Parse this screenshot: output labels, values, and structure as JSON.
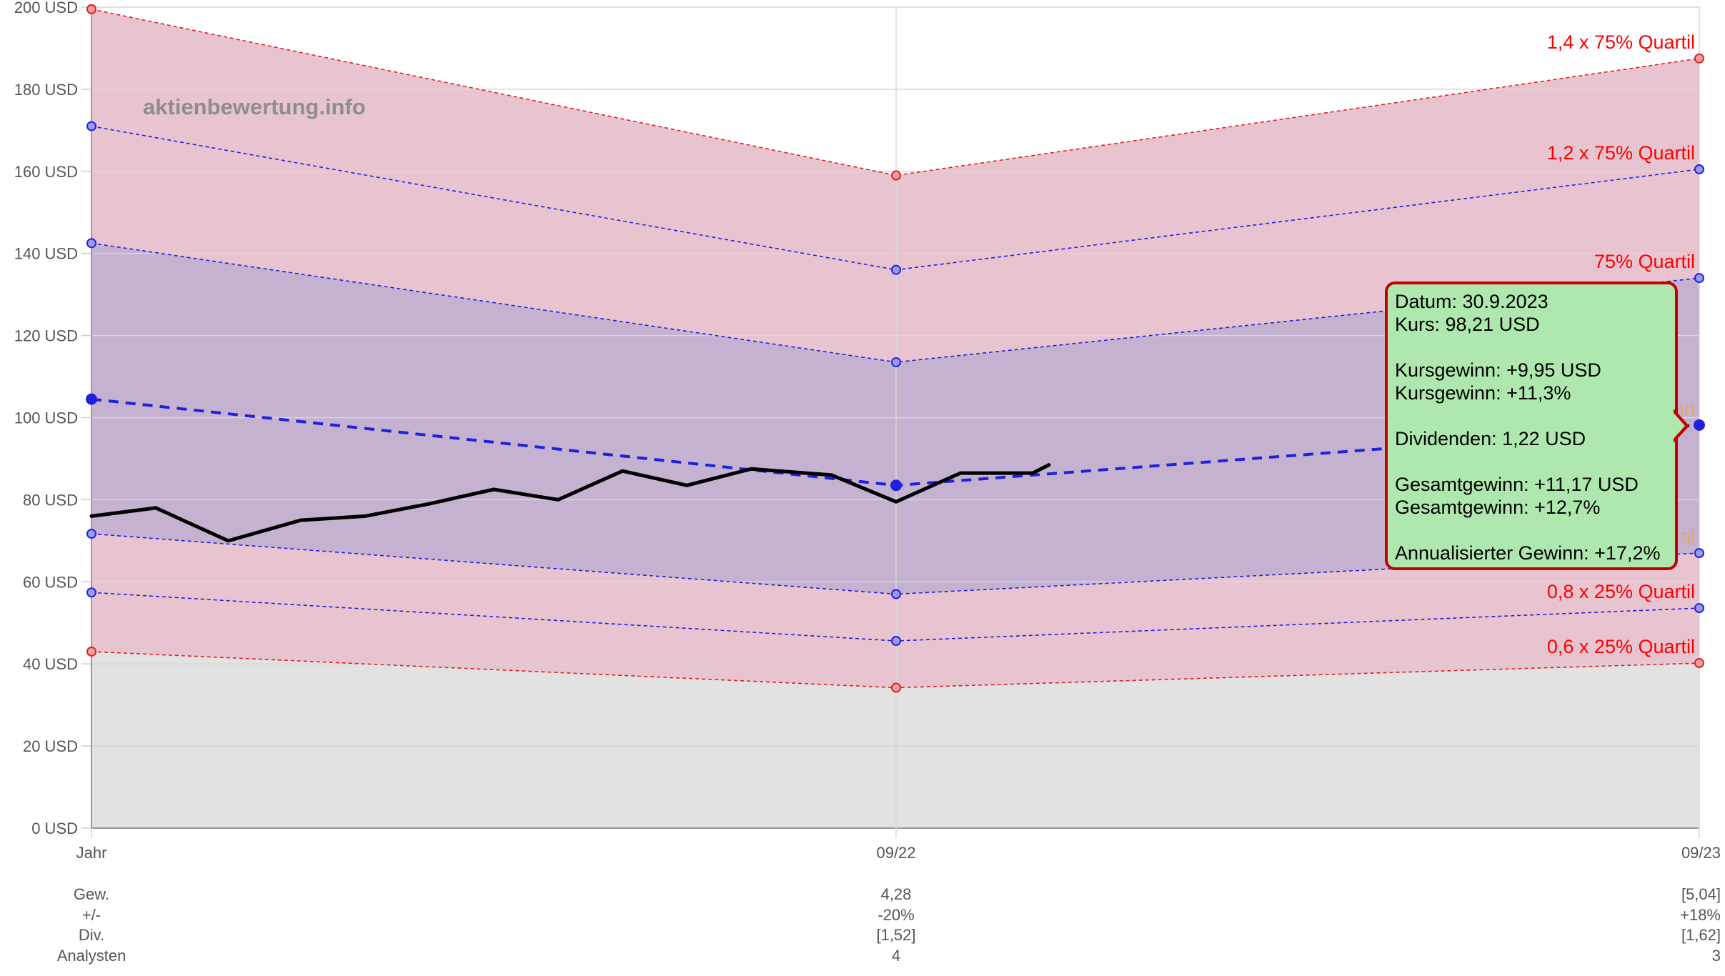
{
  "watermark": "aktienbewertung.info",
  "colors": {
    "red_band": "#e8c4d0",
    "blue_band": "#c4b2d0",
    "grey_band": "#e2e2e2",
    "red_line": "#e02020",
    "blue_line": "#2020e0",
    "price_line": "#000000",
    "tooltip_bg": "#aee8ae",
    "tooltip_border": "#c40000",
    "label_red": "#ff0000",
    "label_tan": "#d9a878"
  },
  "chart_data": {
    "type": "line",
    "x_labels": [
      "Jahr",
      "09/22",
      "09/23"
    ],
    "y_ticks": [
      "0 USD",
      "20 USD",
      "40 USD",
      "60 USD",
      "80 USD",
      "100 USD",
      "120 USD",
      "140 USD",
      "160 USD",
      "180 USD",
      "200 USD"
    ],
    "ylim": [
      0,
      200
    ],
    "grid": true,
    "series": [
      {
        "name": "1,4 x 75% Quartil",
        "values": [
          199.5,
          159,
          187.5
        ],
        "color": "#e02020",
        "label_color": "#ff0000"
      },
      {
        "name": "1,2 x 75% Quartil",
        "values": [
          171,
          136,
          160.5
        ],
        "color": "#2020e0",
        "label_color": "#ff0000"
      },
      {
        "name": "75% Quartil",
        "values": [
          142.5,
          113.5,
          134
        ],
        "color": "#2020e0",
        "label_color": "#ff0000"
      },
      {
        "name": "Median",
        "values": [
          104.5,
          83.5,
          98.2
        ],
        "color": "#2020e0",
        "label_color": "#d9a878"
      },
      {
        "name": "25% Quartil",
        "values": [
          71.7,
          57,
          67
        ],
        "color": "#2020e0",
        "label_color": "#d9a878"
      },
      {
        "name": "0,8 x 25% Quartil",
        "values": [
          57.4,
          45.6,
          53.6
        ],
        "color": "#2020e0",
        "label_color": "#ff0000"
      },
      {
        "name": "0,6 x 25% Quartil",
        "values": [
          43,
          34.2,
          40.2
        ],
        "color": "#e02020",
        "label_color": "#ff0000"
      }
    ],
    "price": {
      "x": [
        0.0,
        0.08,
        0.17,
        0.26,
        0.34,
        0.42,
        0.5,
        0.58,
        0.66,
        0.74,
        0.82,
        0.92,
        1.0,
        1.08,
        1.17,
        1.19
      ],
      "values": [
        76,
        78,
        70,
        75,
        76,
        79,
        82.5,
        80,
        87,
        83.5,
        87.5,
        86,
        79.5,
        86.5,
        86.5,
        88.5
      ]
    },
    "table": {
      "row_labels": [
        "Gew.",
        "+/-",
        "Div.",
        "Analysten"
      ],
      "columns": [
        [
          "",
          "",
          "",
          ""
        ],
        [
          "4,28",
          "-20%",
          "[1,52]",
          "4"
        ],
        [
          "[5,04]",
          "+18%",
          "[1,62]",
          "3"
        ]
      ]
    }
  },
  "tooltip": {
    "date": "Datum: 30.9.2023",
    "price": "Kurs: 98,21 USD",
    "gain_abs": "Kursgewinn: +9,95 USD",
    "gain_pct": "Kursgewinn: +11,3%",
    "dividends": "Dividenden: 1,22 USD",
    "total_abs": "Gesamtgewinn: +11,17 USD",
    "total_pct": "Gesamtgewinn: +12,7%",
    "annualized": "Annualisierter Gewinn: +17,2%"
  }
}
